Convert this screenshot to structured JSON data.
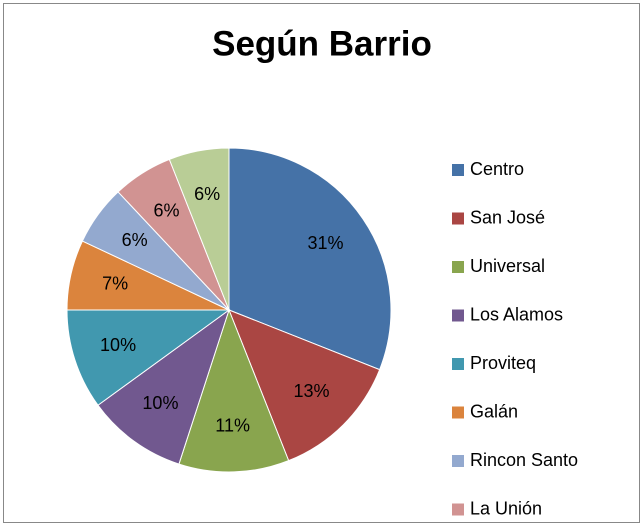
{
  "chart_data": {
    "type": "pie",
    "title": "Según Barrio",
    "categories": [
      "Centro",
      "San José",
      "Universal",
      "Los Alamos",
      "Proviteq",
      "Galán",
      "Rincon Santo",
      "La Unión",
      null
    ],
    "values": [
      31,
      13,
      11,
      10,
      10,
      7,
      6,
      6,
      6
    ],
    "value_labels": [
      "31%",
      "13%",
      "11%",
      "10%",
      "10%",
      "7%",
      "6%",
      "6%",
      "6%"
    ],
    "colors": [
      "#4572a7",
      "#aa4643",
      "#89a54e",
      "#71588f",
      "#4198af",
      "#db843d",
      "#93a9cf",
      "#d19392",
      "#b9cd96"
    ],
    "legend": "right"
  }
}
